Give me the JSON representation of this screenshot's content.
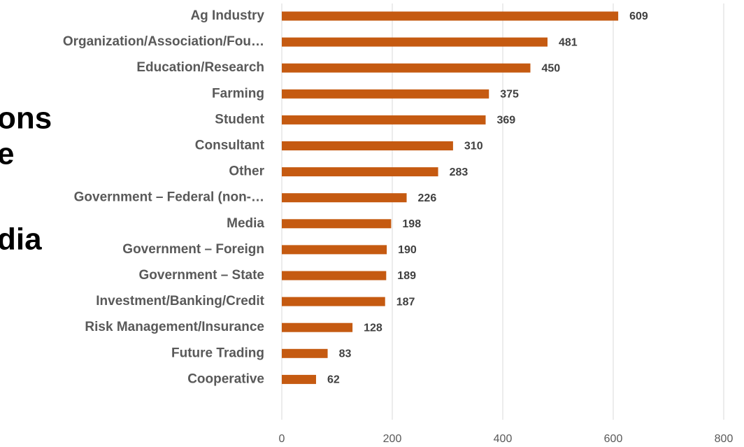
{
  "background_text": [
    "ons",
    "e",
    "dia"
  ],
  "chart_data": {
    "type": "barh",
    "categories": [
      "Ag Industry",
      "Organization/Association/Fou…",
      "Education/Research",
      "Farming",
      "Student",
      "Consultant",
      "Other",
      "Government – Federal (non-…",
      "Media",
      "Government – Foreign",
      "Government – State",
      "Investment/Banking/Credit",
      "Risk Management/Insurance",
      "Future Trading",
      "Cooperative"
    ],
    "values": [
      609,
      481,
      450,
      375,
      369,
      310,
      283,
      226,
      198,
      190,
      189,
      187,
      128,
      83,
      62
    ],
    "color": "#c55a11",
    "xlim": [
      0,
      800
    ],
    "xticks": [
      0,
      200,
      400,
      600,
      800
    ],
    "grid": true
  }
}
